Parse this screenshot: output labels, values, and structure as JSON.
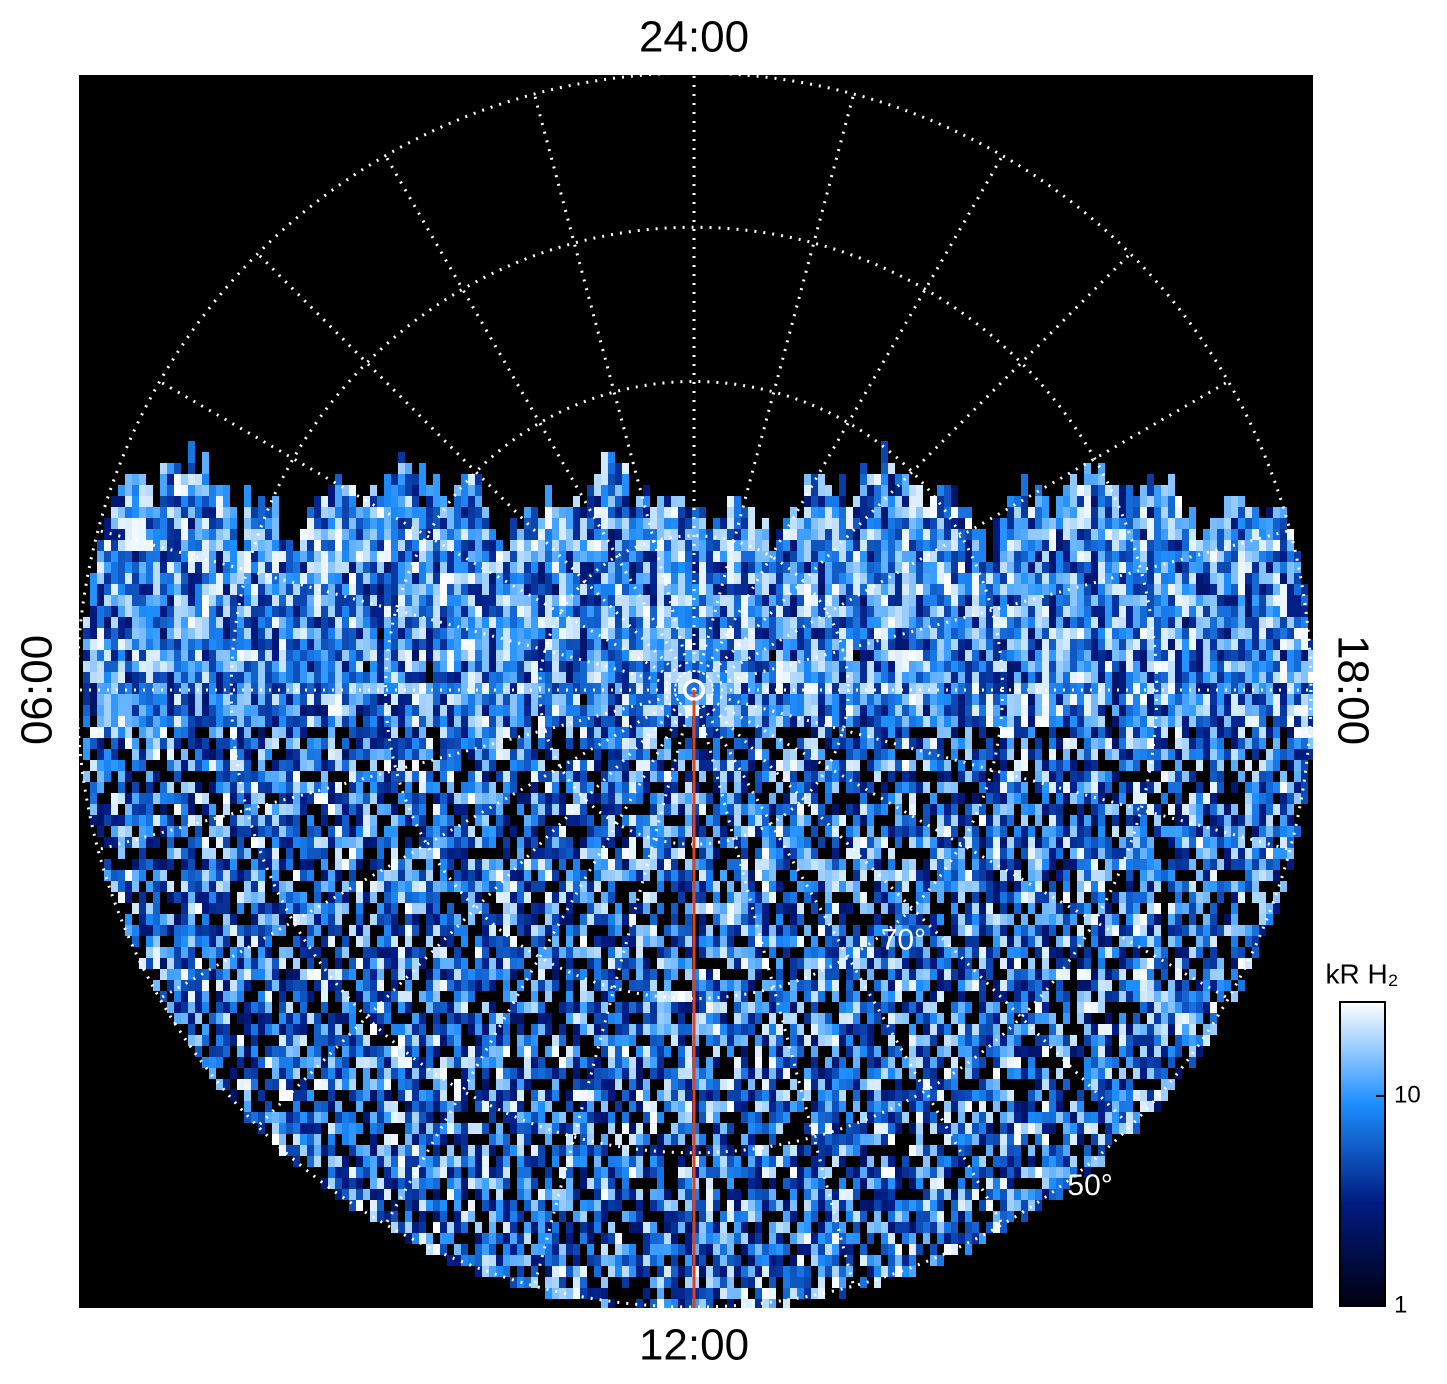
{
  "chart_data": {
    "type": "polar_image",
    "top_label": "24:00",
    "bottom_label": "12:00",
    "left_label": "06:00",
    "right_label": "18:00",
    "rlim": [
      90,
      50
    ],
    "rticks": [
      {
        "value": 70,
        "label": "70°"
      },
      {
        "value": 50,
        "label": "50°"
      }
    ],
    "grid": true,
    "colorbar": {
      "title": "kR H₂",
      "log": true,
      "ylim": [
        1,
        28
      ],
      "yticks": [
        1,
        10
      ],
      "colors": [
        "#000010",
        "#001a80",
        "#1e8fff",
        "#ffffff"
      ]
    }
  }
}
